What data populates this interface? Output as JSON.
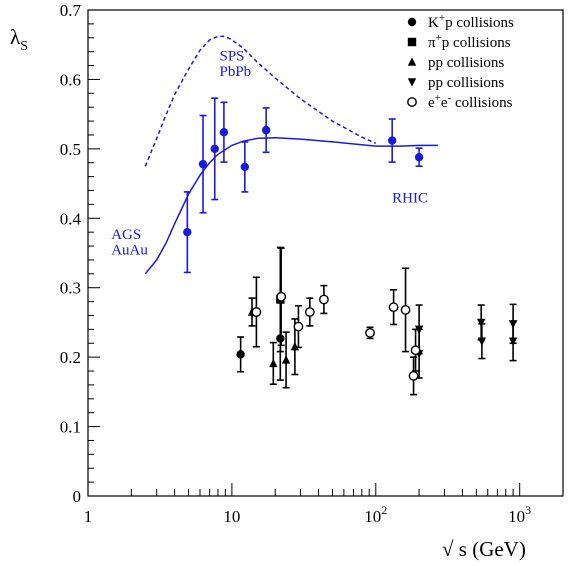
{
  "chart_data": {
    "type": "scatter",
    "x_scale": "log",
    "xlim": [
      1,
      2000
    ],
    "ylim": [
      0,
      0.7
    ],
    "xlabel": "√ s (GeV)",
    "ylabel": "λS",
    "ylabel_main": "λ",
    "ylabel_sub": "S",
    "y_ticks": [
      "0",
      "0.1",
      "0.2",
      "0.3",
      "0.4",
      "0.5",
      "0.6",
      "0.7"
    ],
    "x_ticks": [
      {
        "value": 1,
        "base": "1",
        "exp": ""
      },
      {
        "value": 10,
        "base": "10",
        "exp": ""
      },
      {
        "value": 100,
        "base": "10",
        "exp": "2"
      },
      {
        "value": 1000,
        "base": "10",
        "exp": "3"
      }
    ],
    "legend": [
      {
        "marker": "circle-filled",
        "prefix": "K",
        "sup": "+",
        "suffix": "p collisions"
      },
      {
        "marker": "square-filled",
        "prefix": "π",
        "sup": "+",
        "suffix": "p collisions"
      },
      {
        "marker": "triangle-up",
        "prefix": "pp collisions",
        "sup": "",
        "suffix": ""
      },
      {
        "marker": "triangle-down",
        "prefix": "pp collisions",
        "sup": "",
        "suffix": ""
      },
      {
        "marker": "circle-open",
        "prefix": "e",
        "sup": "+",
        "suffix": "e",
        "sup2": "-",
        "suffix2": " collisions"
      }
    ],
    "annotations": [
      {
        "text": "SPS",
        "x": 8.2,
        "y": 0.627,
        "color": "#1a1adc"
      },
      {
        "text": "PbPb",
        "x": 8.2,
        "y": 0.605,
        "color": "#1a1adc"
      },
      {
        "text": "AGS",
        "x": 1.45,
        "y": 0.37,
        "color": "#1a1adc"
      },
      {
        "text": "AuAu",
        "x": 1.45,
        "y": 0.348,
        "color": "#1a1adc"
      },
      {
        "text": "RHIC",
        "x": 130,
        "y": 0.423,
        "color": "#1a1adc"
      }
    ],
    "colors": {
      "heavy_ion": "#1a1adc",
      "elementary": "#000000"
    },
    "series": [
      {
        "name": "AuAu / PbPb (blue)",
        "marker": "circle-filled",
        "color": "#1a1adc",
        "points": [
          {
            "x": 4.9,
            "y": 0.38,
            "err": 0.058
          },
          {
            "x": 6.3,
            "y": 0.478,
            "err": 0.07
          },
          {
            "x": 7.6,
            "y": 0.5,
            "err": 0.073
          },
          {
            "x": 8.8,
            "y": 0.524,
            "err": 0.043
          },
          {
            "x": 12.3,
            "y": 0.474,
            "err": 0.036
          },
          {
            "x": 17.3,
            "y": 0.527,
            "err": 0.032
          },
          {
            "x": 130,
            "y": 0.512,
            "err": 0.031
          },
          {
            "x": 200,
            "y": 0.488,
            "err": 0.013
          }
        ]
      },
      {
        "name": "K+p collisions",
        "marker": "circle-filled",
        "color": "#000000",
        "points": [
          {
            "x": 11.5,
            "y": 0.204,
            "err": 0.025
          },
          {
            "x": 21.7,
            "y": 0.227,
            "err": 0.06
          }
        ]
      },
      {
        "name": "π+p collisions",
        "marker": "square-filled",
        "color": "#000000",
        "points": [
          {
            "x": 21.7,
            "y": 0.283,
            "err": 0.075
          }
        ]
      },
      {
        "name": "pp collisions (up)",
        "marker": "triangle-up",
        "color": "#000000",
        "points": [
          {
            "x": 13.8,
            "y": 0.265,
            "err": 0.02
          },
          {
            "x": 19.4,
            "y": 0.191,
            "err": 0.03
          },
          {
            "x": 23.8,
            "y": 0.196,
            "err": 0.04
          },
          {
            "x": 27.4,
            "y": 0.215,
            "err": 0.04
          }
        ]
      },
      {
        "name": "pp collisions (down)",
        "marker": "triangle-down",
        "color": "#000000",
        "points": [
          {
            "x": 200,
            "y": 0.24,
            "err": 0.035
          },
          {
            "x": 200,
            "y": 0.205,
            "err": 0.035
          },
          {
            "x": 540,
            "y": 0.25,
            "err": 0.025
          },
          {
            "x": 546,
            "y": 0.223,
            "err": 0.025
          },
          {
            "x": 900,
            "y": 0.248,
            "err": 0.028
          },
          {
            "x": 900,
            "y": 0.223,
            "err": 0.028
          }
        ]
      },
      {
        "name": "e+e- collisions",
        "marker": "circle-open",
        "color": "#000000",
        "points": [
          {
            "x": 14.8,
            "y": 0.265,
            "err": 0.05
          },
          {
            "x": 22,
            "y": 0.287,
            "err": 0.07
          },
          {
            "x": 29,
            "y": 0.244,
            "err": 0.03
          },
          {
            "x": 34.8,
            "y": 0.265,
            "err": 0.02
          },
          {
            "x": 43.6,
            "y": 0.283,
            "err": 0.02
          },
          {
            "x": 91.2,
            "y": 0.235,
            "err": 0.008
          },
          {
            "x": 133,
            "y": 0.272,
            "err": 0.025
          },
          {
            "x": 161,
            "y": 0.268,
            "err": 0.06
          },
          {
            "x": 183,
            "y": 0.173,
            "err": 0.027
          },
          {
            "x": 189,
            "y": 0.21,
            "err": 0.03
          }
        ]
      }
    ],
    "curves": [
      {
        "name": "SPS PbPb model",
        "style": "dashed",
        "color": "#1a1adc",
        "points": [
          [
            2.5,
            0.475
          ],
          [
            3,
            0.515
          ],
          [
            3.5,
            0.55
          ],
          [
            4,
            0.578
          ],
          [
            5,
            0.615
          ],
          [
            6,
            0.642
          ],
          [
            7,
            0.657
          ],
          [
            8,
            0.662
          ],
          [
            9,
            0.662
          ],
          [
            10,
            0.657
          ],
          [
            12,
            0.645
          ],
          [
            15,
            0.625
          ],
          [
            20,
            0.602
          ],
          [
            30,
            0.572
          ],
          [
            50,
            0.54
          ],
          [
            80,
            0.517
          ],
          [
            100,
            0.508
          ]
        ]
      },
      {
        "name": "AGS-RHIC model",
        "style": "solid",
        "color": "#1a1adc",
        "points": [
          [
            2.5,
            0.32
          ],
          [
            3,
            0.34
          ],
          [
            3.5,
            0.365
          ],
          [
            4,
            0.392
          ],
          [
            5,
            0.435
          ],
          [
            6,
            0.462
          ],
          [
            7,
            0.48
          ],
          [
            8,
            0.492
          ],
          [
            10,
            0.505
          ],
          [
            12,
            0.511
          ],
          [
            15,
            0.515
          ],
          [
            20,
            0.516
          ],
          [
            30,
            0.514
          ],
          [
            50,
            0.51
          ],
          [
            80,
            0.506
          ],
          [
            100,
            0.504
          ],
          [
            150,
            0.504
          ],
          [
            200,
            0.505
          ],
          [
            270,
            0.505
          ]
        ]
      }
    ]
  }
}
